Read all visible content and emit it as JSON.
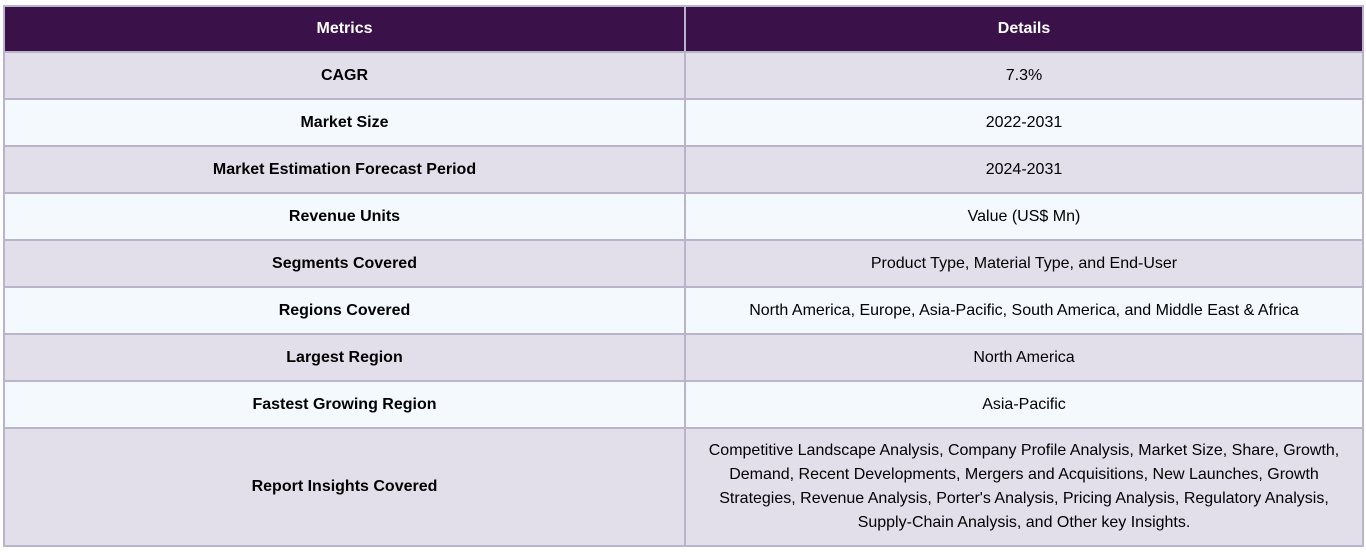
{
  "table": {
    "headers": [
      "Metrics",
      "Details"
    ],
    "rows": [
      {
        "metric": "CAGR",
        "detail": "7.3%"
      },
      {
        "metric": "Market Size",
        "detail": "2022-2031"
      },
      {
        "metric": "Market Estimation Forecast Period",
        "detail": "2024-2031"
      },
      {
        "metric": "Revenue Units",
        "detail": "Value (US$ Mn)"
      },
      {
        "metric": "Segments Covered",
        "detail": "Product Type, Material Type, and End-User"
      },
      {
        "metric": "Regions Covered",
        "detail": "North America, Europe, Asia-Pacific, South America, and Middle East & Africa"
      },
      {
        "metric": "Largest Region",
        "detail": "North America"
      },
      {
        "metric": "Fastest Growing Region",
        "detail": "Asia-Pacific"
      },
      {
        "metric": "Report Insights Covered",
        "detail": "Competitive Landscape Analysis, Company Profile Analysis, Market Size, Share, Growth, Demand, Recent Developments, Mergers and Acquisitions, New Launches, Growth Strategies, Revenue Analysis, Porter's Analysis, Pricing Analysis, Regulatory Analysis, Supply-Chain Analysis, and Other key Insights."
      }
    ]
  },
  "colors": {
    "header_bg": "#3b1149",
    "header_text": "#ffffff",
    "row_odd_bg": "#e2dfeb",
    "row_even_bg": "#f3f9fc",
    "border": "#b9b3cc"
  }
}
